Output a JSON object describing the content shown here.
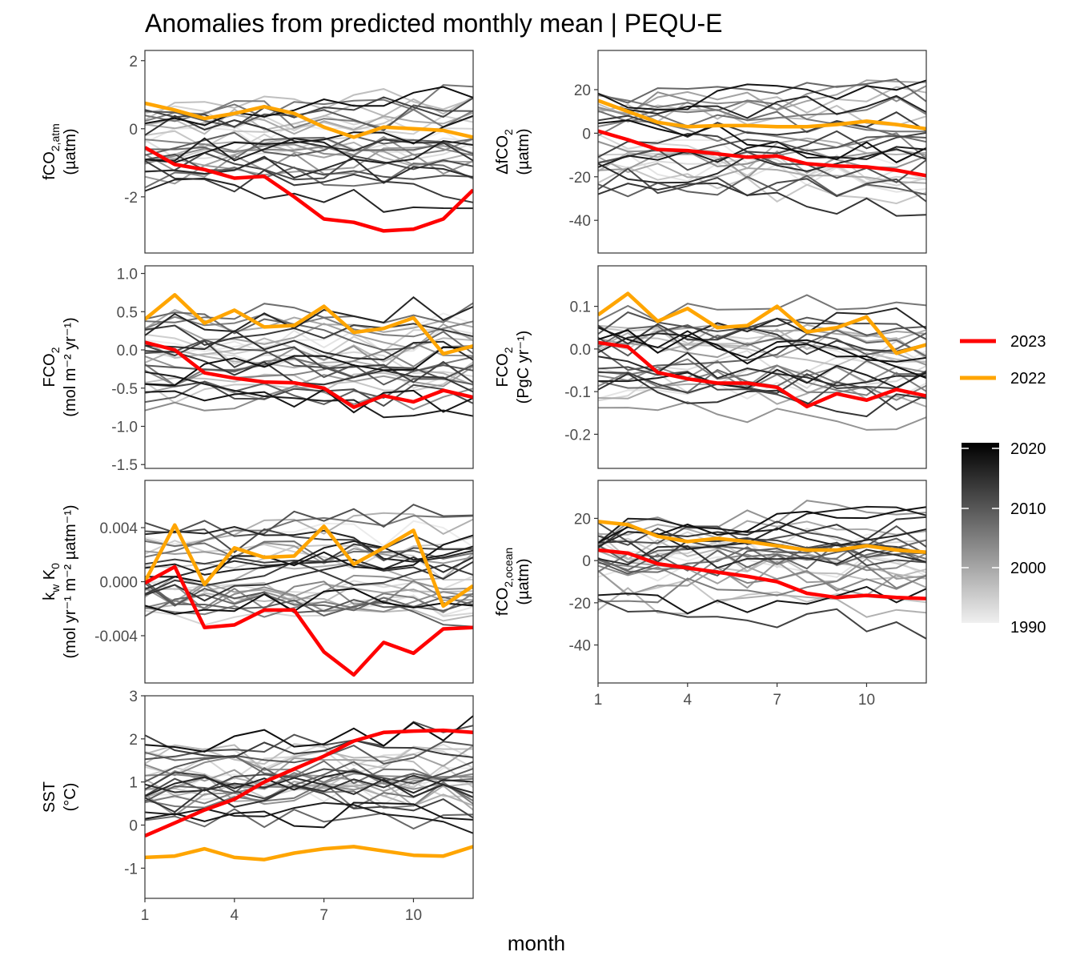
{
  "title": "Anomalies from predicted monthly mean | PEQU-E",
  "xlabel": "month",
  "legend": {
    "entries": [
      {
        "label": "2023",
        "color": "#ff0000"
      },
      {
        "label": "2022",
        "color": "#ffa500"
      }
    ],
    "colorbar": {
      "from_color": "#f0f0f0",
      "to_color": "#000000",
      "ticks": [
        "2020",
        "2010",
        "2000",
        "1990"
      ]
    }
  },
  "chart_data": [
    {
      "type": "line",
      "ylabel": {
        "pre": "fCO",
        "sub": "2,atm",
        "line2": "(µatm)"
      },
      "xlim": [
        1,
        12
      ],
      "ylim": [
        -3.65,
        2.3
      ],
      "x_ticks": [
        1,
        4,
        7,
        10
      ],
      "y_ticks": [
        {
          "v": 2,
          "label": "2"
        },
        {
          "v": 0,
          "label": "0"
        },
        {
          "v": -2,
          "label": "-2"
        }
      ],
      "show_x_axis": false,
      "highlight": {
        "2023": [
          -0.55,
          -1.05,
          -1.2,
          -1.45,
          -1.4,
          -2.0,
          -2.65,
          -2.75,
          -3.0,
          -2.95,
          -2.65,
          -1.8
        ],
        "2022": [
          0.75,
          0.55,
          0.3,
          0.45,
          0.65,
          0.45,
          0.05,
          -0.25,
          0.05,
          0.0,
          -0.05,
          -0.25
        ]
      }
    },
    {
      "type": "line",
      "ylabel": {
        "pre": "ΔfCO",
        "sub": "2",
        "line2": "(µatm)"
      },
      "xlim": [
        1,
        12
      ],
      "ylim": [
        -55,
        38
      ],
      "x_ticks": [
        1,
        4,
        7,
        10
      ],
      "y_ticks": [
        {
          "v": 20,
          "label": "20"
        },
        {
          "v": 0,
          "label": "0"
        },
        {
          "v": -20,
          "label": "-20"
        },
        {
          "v": -40,
          "label": "-40"
        }
      ],
      "show_x_axis": false,
      "highlight": {
        "2023": [
          1,
          -3,
          -7.5,
          -8,
          -9.5,
          -11,
          -10.5,
          -14,
          -15,
          -15.5,
          -17,
          -19.5
        ],
        "2022": [
          15,
          10,
          5,
          3,
          3.5,
          3.5,
          3,
          3,
          4,
          5.5,
          4,
          2
        ]
      }
    },
    {
      "type": "line",
      "ylabel": {
        "pre": "FCO",
        "sub": "2",
        "line2": "(mol m⁻² yr⁻¹)"
      },
      "xlim": [
        1,
        12
      ],
      "ylim": [
        -1.55,
        1.1
      ],
      "x_ticks": [
        1,
        4,
        7,
        10
      ],
      "y_ticks": [
        {
          "v": 1.0,
          "label": "1.0"
        },
        {
          "v": 0.5,
          "label": "0.5"
        },
        {
          "v": 0.0,
          "label": "0.0"
        },
        {
          "v": -0.5,
          "label": "-0.5"
        },
        {
          "v": -1.0,
          "label": "-1.0"
        },
        {
          "v": -1.5,
          "label": "-1.5"
        }
      ],
      "show_x_axis": false,
      "highlight": {
        "2023": [
          0.1,
          0.0,
          -0.3,
          -0.37,
          -0.42,
          -0.43,
          -0.5,
          -0.75,
          -0.6,
          -0.68,
          -0.53,
          -0.62
        ],
        "2022": [
          0.4,
          0.72,
          0.35,
          0.52,
          0.3,
          0.32,
          0.57,
          0.23,
          0.28,
          0.42,
          -0.05,
          0.05
        ]
      }
    },
    {
      "type": "line",
      "ylabel": {
        "pre": "FCO",
        "sub": "2",
        "line2": "(PgC yr⁻¹)"
      },
      "xlim": [
        1,
        12
      ],
      "ylim": [
        -0.28,
        0.195
      ],
      "x_ticks": [
        1,
        4,
        7,
        10
      ],
      "y_ticks": [
        {
          "v": 0.1,
          "label": "0.1"
        },
        {
          "v": 0.0,
          "label": "0.0"
        },
        {
          "v": -0.1,
          "label": "-0.1"
        },
        {
          "v": -0.2,
          "label": "-0.2"
        }
      ],
      "show_x_axis": false,
      "highlight": {
        "2023": [
          0.015,
          0.005,
          -0.055,
          -0.07,
          -0.08,
          -0.08,
          -0.09,
          -0.135,
          -0.105,
          -0.12,
          -0.095,
          -0.11
        ],
        "2022": [
          0.08,
          0.13,
          0.065,
          0.095,
          0.05,
          0.055,
          0.1,
          0.04,
          0.05,
          0.075,
          -0.01,
          0.01
        ]
      }
    },
    {
      "type": "line",
      "ylabel": {
        "pre": "k",
        "sub": "w",
        "mid": " K",
        "sub2": "0",
        "line2": "(mol yr⁻¹ m⁻² µatm⁻¹)"
      },
      "xlim": [
        1,
        12
      ],
      "ylim": [
        -0.0075,
        0.0075
      ],
      "x_ticks": [
        1,
        4,
        7,
        10
      ],
      "y_ticks": [
        {
          "v": 0.004,
          "label": "0.004"
        },
        {
          "v": 0.0,
          "label": "0.000"
        },
        {
          "v": -0.004,
          "label": "-0.004"
        }
      ],
      "show_x_axis": false,
      "highlight": {
        "2023": [
          -0.0001,
          0.0011,
          -0.0034,
          -0.0032,
          -0.0021,
          -0.0021,
          -0.0052,
          -0.0069,
          -0.0045,
          -0.0053,
          -0.0035,
          -0.0034
        ],
        "2022": [
          0.0,
          0.0042,
          -0.0002,
          0.0025,
          0.0018,
          0.0019,
          0.0041,
          0.0013,
          0.0025,
          0.0038,
          -0.0018,
          -0.0003
        ]
      }
    },
    {
      "type": "line",
      "ylabel": {
        "pre": "fCO",
        "sub": "2,ocean",
        "line2": "(µatm)"
      },
      "xlim": [
        1,
        12
      ],
      "ylim": [
        -58,
        38
      ],
      "x_ticks": [
        1,
        4,
        7,
        10
      ],
      "y_ticks": [
        {
          "v": 20,
          "label": "20"
        },
        {
          "v": 0,
          "label": "0"
        },
        {
          "v": -20,
          "label": "-20"
        },
        {
          "v": -40,
          "label": "-40"
        }
      ],
      "show_x_axis": true,
      "highlight": {
        "2023": [
          5,
          3.5,
          -1.5,
          -3.5,
          -5.5,
          -7.5,
          -10,
          -15.5,
          -17.5,
          -16.5,
          -17.5,
          -18
        ],
        "2022": [
          18.5,
          17,
          11.5,
          9,
          10.5,
          9,
          7,
          5,
          5,
          7,
          5,
          4
        ]
      }
    },
    {
      "type": "line",
      "ylabel": {
        "pre": "SST",
        "line2": "(°C)"
      },
      "xlim": [
        1,
        12
      ],
      "ylim": [
        -1.7,
        3.0
      ],
      "x_ticks": [
        1,
        4,
        7,
        10
      ],
      "y_ticks": [
        {
          "v": 3,
          "label": "3"
        },
        {
          "v": 2,
          "label": "2"
        },
        {
          "v": 1,
          "label": "1"
        },
        {
          "v": 0,
          "label": "0"
        },
        {
          "v": -1,
          "label": "-1"
        }
      ],
      "show_x_axis": true,
      "highlight": {
        "2023": [
          -0.25,
          0.05,
          0.35,
          0.6,
          1.0,
          1.3,
          1.6,
          1.95,
          2.15,
          2.18,
          2.2,
          2.15
        ],
        "2022": [
          -0.75,
          -0.72,
          -0.55,
          -0.75,
          -0.8,
          -0.65,
          -0.55,
          -0.5,
          -0.6,
          -0.7,
          -0.72,
          -0.5
        ]
      }
    }
  ]
}
